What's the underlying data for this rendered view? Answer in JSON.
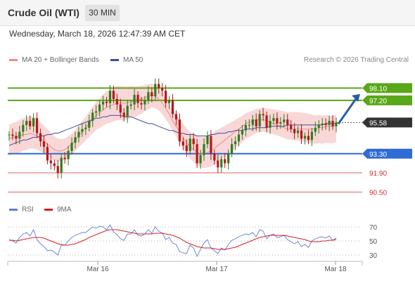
{
  "header": {
    "instrument": "Crude Oil (WTI)",
    "timeframe": "30 MIN"
  },
  "timestamp": "Wednesday, March 18, 2026 12:47:39 AM CET",
  "legend": {
    "ma20": "MA 20 + Bollinger Bands",
    "ma50": "MA 50",
    "credit": "Research © 2026 Trading Central",
    "rsi": "RSI",
    "rsi_ma": "9MA"
  },
  "colors": {
    "green": "#5aa718",
    "blue": "#2f6bd6",
    "red": "#e06060",
    "current": "#333333",
    "candle": "#2e7d1e",
    "candle_down": "#b51818",
    "ma20": "#f08a8a",
    "ma50": "#3b4f9e",
    "band": "#f7c9c9",
    "arrow": "#2a5ca8",
    "rsi_line": "#5b7fd6",
    "rsi_ma_line": "#d42020"
  },
  "chart_data": [
    {
      "type": "candlestick",
      "x_labels": [
        "Mar 16",
        "Mar 17",
        "Mar 18"
      ],
      "price_range": [
        89.9,
        99.4
      ],
      "levels": [
        {
          "label": "98.10",
          "value": 98.1,
          "color": "#5aa718",
          "kind": "resistance"
        },
        {
          "label": "97.20",
          "value": 97.2,
          "color": "#5aa718",
          "kind": "resistance"
        },
        {
          "label": "95.58",
          "value": 95.58,
          "color": "#333333",
          "kind": "current"
        },
        {
          "label": "93.30",
          "value": 93.3,
          "color": "#2f6bd6",
          "kind": "pivot"
        },
        {
          "label": "91.90",
          "value": 91.9,
          "color": "#e06060",
          "kind": "support"
        },
        {
          "label": "90.50",
          "value": 90.5,
          "color": "#e06060",
          "kind": "support"
        }
      ],
      "close_series": [
        94.7,
        94.6,
        94.4,
        94.9,
        95.4,
        95.7,
        95.3,
        95.9,
        94.8,
        94.2,
        93.8,
        92.8,
        92.6,
        92.4,
        91.9,
        93.0,
        92.9,
        93.5,
        94.1,
        94.5,
        94.9,
        95.1,
        95.2,
        95.7,
        96.3,
        96.4,
        96.9,
        97.1,
        97.0,
        97.9,
        97.3,
        96.9,
        96.3,
        96.0,
        96.8,
        96.9,
        97.6,
        97.0,
        96.9,
        97.2,
        97.8,
        97.5,
        98.4,
        98.1,
        97.9,
        97.0,
        97.2,
        96.2,
        95.8,
        94.2,
        93.9,
        93.5,
        94.4,
        94.0,
        92.6,
        93.2,
        94.0,
        94.6,
        93.3,
        92.8,
        92.3,
        92.9,
        92.6,
        93.3,
        94.0,
        94.2,
        94.7,
        95.0,
        95.4,
        95.4,
        95.8,
        95.3,
        96.2,
        96.1,
        95.2,
        95.7,
        95.9,
        95.5,
        95.6,
        95.8,
        95.4,
        95.1,
        94.8,
        95.0,
        94.4,
        94.6,
        94.3,
        94.9,
        95.2,
        95.4,
        95.5,
        95.4,
        95.7,
        95.3,
        95.6
      ],
      "ma20": [
        94.4,
        94.5,
        94.5,
        94.6,
        94.7,
        94.7,
        94.8,
        94.7,
        94.6,
        94.4,
        94.2,
        94.0,
        93.8,
        93.6,
        93.5,
        93.5,
        93.6,
        93.8,
        94.0,
        94.3,
        94.6,
        94.9,
        95.2,
        95.5,
        95.8,
        96.1,
        96.3,
        96.5,
        96.7,
        96.8,
        96.9,
        97.0,
        97.0,
        97.0,
        97.0,
        97.1,
        97.1,
        97.2,
        97.3,
        97.4,
        97.5,
        97.6,
        97.5,
        97.3,
        97.0,
        96.6,
        96.2,
        95.7,
        95.3,
        94.9,
        94.5,
        94.1,
        93.8,
        93.6,
        93.4,
        93.3,
        93.3,
        93.4,
        93.5,
        93.7,
        93.9,
        94.1,
        94.3,
        94.5,
        94.7,
        94.9,
        95.1,
        95.3,
        95.5,
        95.6,
        95.7,
        95.8,
        95.8,
        95.8,
        95.7,
        95.6,
        95.5,
        95.4,
        95.3,
        95.2,
        95.1,
        95.1,
        95.1,
        95.1,
        95.1,
        95.1,
        95.1,
        95.1,
        95.1,
        95.2,
        95.2,
        95.3,
        95.3,
        95.3,
        95.4
      ],
      "ma50": [
        93.9,
        94.0,
        94.1,
        94.2,
        94.3,
        94.3,
        94.4,
        94.5,
        94.5,
        94.6,
        94.6,
        94.7,
        94.7,
        94.8,
        94.8,
        94.9,
        95.0,
        95.1,
        95.2,
        95.3,
        95.4,
        95.5,
        95.6,
        95.7,
        95.8,
        95.9,
        95.9,
        96.0,
        96.0,
        96.1,
        96.1,
        96.1,
        96.1,
        96.0,
        96.0,
        96.0,
        95.9,
        95.8,
        95.7,
        95.6,
        95.5,
        95.5,
        95.4,
        95.3,
        95.2,
        95.1,
        95.0,
        95.0,
        94.9,
        94.8,
        94.8,
        94.7,
        94.7,
        94.7,
        94.6,
        94.6,
        94.6,
        94.6,
        94.7,
        94.7,
        94.8,
        94.8,
        94.8,
        94.9,
        94.9,
        95.0,
        95.0,
        95.0,
        95.1,
        95.1,
        95.1,
        95.2,
        95.2,
        95.2,
        95.2,
        95.3,
        95.3,
        95.3,
        95.3,
        95.3,
        95.4,
        95.4,
        95.4,
        95.4,
        95.4,
        95.4,
        95.4,
        95.4,
        95.4,
        95.4,
        95.4,
        95.5,
        95.5,
        95.5,
        95.5
      ],
      "projection": {
        "from": 95.58,
        "to": 97.2
      }
    },
    {
      "type": "line",
      "name": "RSI",
      "y_ticks": [
        70,
        50,
        30
      ],
      "y_range": [
        25,
        78
      ],
      "rsi": [
        52,
        50,
        47,
        55,
        60,
        62,
        57,
        66,
        52,
        46,
        42,
        36,
        37,
        34,
        30,
        44,
        44,
        50,
        55,
        58,
        60,
        62,
        62,
        66,
        70,
        68,
        71,
        70,
        66,
        73,
        63,
        59,
        53,
        51,
        60,
        60,
        66,
        58,
        57,
        60,
        66,
        61,
        70,
        64,
        61,
        52,
        55,
        47,
        45,
        35,
        33,
        32,
        44,
        40,
        28,
        38,
        47,
        52,
        40,
        36,
        32,
        40,
        37,
        45,
        51,
        53,
        56,
        58,
        60,
        59,
        62,
        56,
        66,
        64,
        53,
        58,
        60,
        55,
        56,
        58,
        52,
        49,
        46,
        49,
        42,
        45,
        41,
        50,
        53,
        55,
        56,
        54,
        57,
        51,
        54
      ],
      "rsi_ma": [
        51,
        51,
        50,
        51,
        52,
        53,
        54,
        55,
        55,
        55,
        54,
        52,
        50,
        48,
        46,
        45,
        44,
        44,
        45,
        46,
        48,
        50,
        52,
        55,
        57,
        59,
        61,
        63,
        65,
        66,
        66,
        66,
        65,
        64,
        63,
        62,
        61,
        60,
        60,
        60,
        60,
        60,
        61,
        61,
        61,
        60,
        59,
        58,
        56,
        54,
        51,
        48,
        46,
        44,
        42,
        41,
        40,
        40,
        40,
        39,
        38,
        38,
        38,
        39,
        40,
        41,
        43,
        45,
        47,
        49,
        51,
        53,
        55,
        56,
        57,
        58,
        58,
        58,
        58,
        58,
        57,
        56,
        55,
        54,
        53,
        52,
        50,
        49,
        49,
        49,
        50,
        50,
        51,
        51,
        52
      ]
    }
  ]
}
